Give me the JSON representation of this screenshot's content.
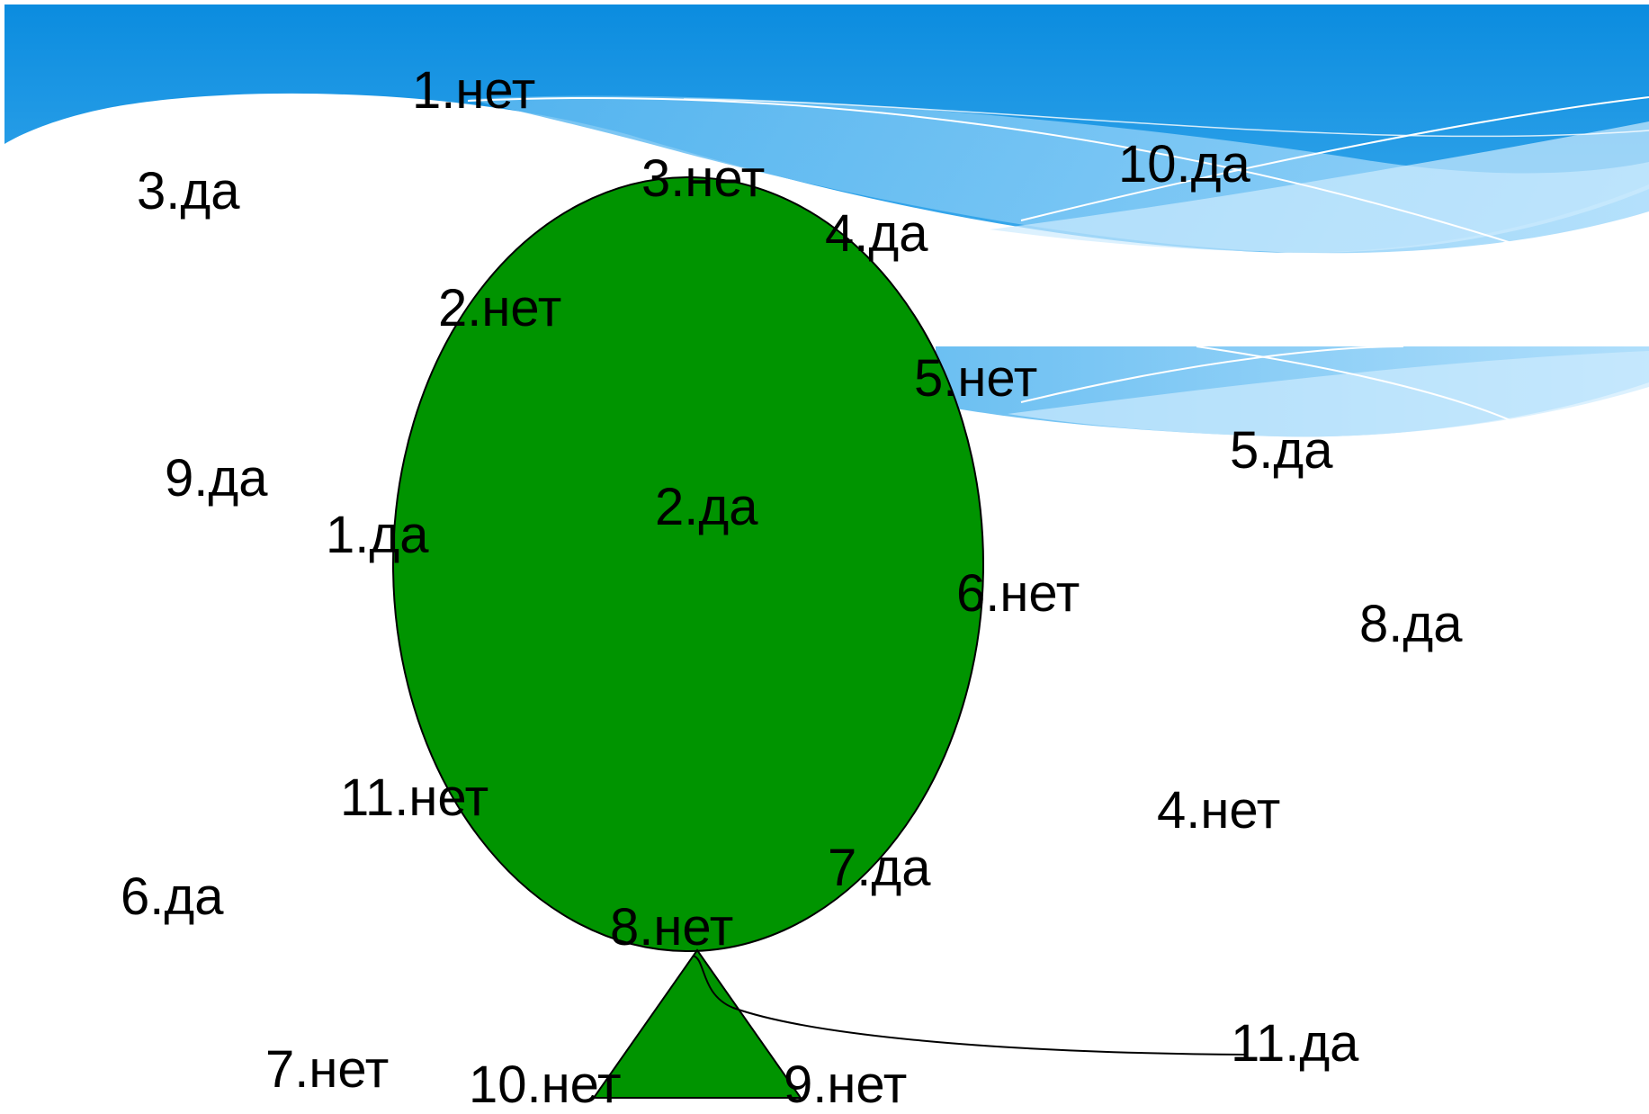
{
  "colors": {
    "sky_dark": "#0d8fe0",
    "sky_light": "#7cc6f4",
    "wave_pale": "#a8d9fa",
    "wave_line": "#ffffff",
    "tree_fill": "#009400",
    "outline": "#000000",
    "text": "#000000"
  },
  "icons": {
    "crown": "green-ellipse",
    "trunk": "green-triangle",
    "connector": "curved-line"
  },
  "labels": {
    "n1": "1.нет",
    "d10": "10.да",
    "d3": "3.да",
    "n3": "3.нет",
    "d4": "4.да",
    "n2": "2.нет",
    "n5": "5.нет",
    "d5": "5.да",
    "d9": "9.да",
    "d2": "2.да",
    "d1": "1.да",
    "n6": "6.нет",
    "d8": "8.да",
    "n11": "11.нет",
    "n4": "4.нет",
    "d7": "7.да",
    "d6": "6.да",
    "n8": "8.нет",
    "d11": "11.да",
    "n7": "7.нет",
    "n10": "10.нет",
    "n9": "9.нет"
  }
}
